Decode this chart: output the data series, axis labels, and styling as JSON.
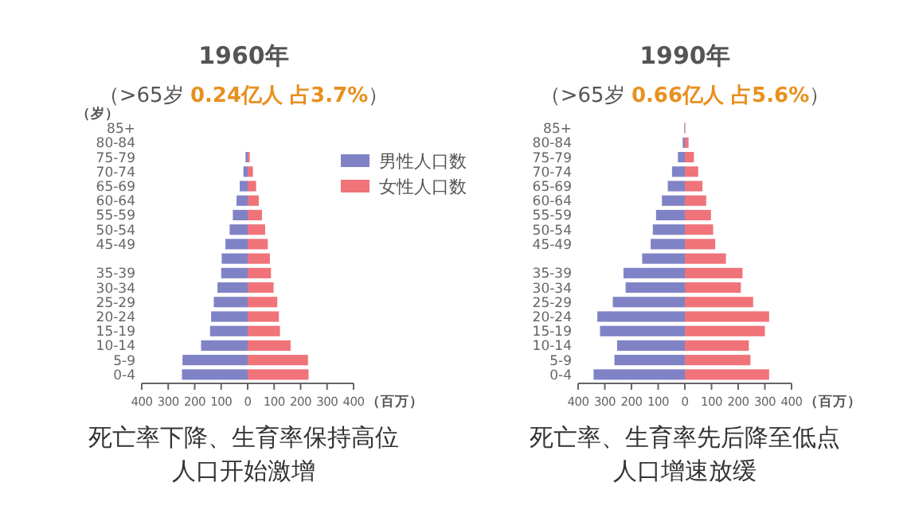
{
  "chart_data": [
    {
      "type": "bar",
      "orientation": "horizontal",
      "stacked": true,
      "title": "1960年",
      "subtitle": "（>65岁 **0.24亿人 占3.7%**）",
      "ylabel": "（岁）",
      "xlabel": "（百万）",
      "categories": [
        "85+",
        "80-84",
        "75-79",
        "70-74",
        "65-69",
        "60-64",
        "55-59",
        "50-54",
        "45-49",
        null,
        "35-39",
        "30-34",
        "25-29",
        "20-24",
        "15-19",
        "10-14",
        "5-9",
        "0-4"
      ],
      "xlim": [
        -400,
        400
      ],
      "xticks": [
        {
          "value": -400,
          "label": "400"
        },
        {
          "value": -300,
          "label": "300"
        },
        {
          "value": -200,
          "label": "200"
        },
        {
          "value": -100,
          "label": "100"
        },
        0,
        100,
        200,
        300,
        400
      ],
      "legend": "top right",
      "series": [
        {
          "name": "男性人口数",
          "color": "#7f83c6",
          "values": [
            0,
            0,
            -8,
            -16,
            -30,
            -42,
            -56,
            -68,
            -84,
            -98,
            -100,
            -114,
            -128,
            -138,
            -142,
            -176,
            -246,
            -248
          ]
        },
        {
          "name": "女性人口数",
          "color": "#f0737a",
          "values": [
            0,
            0,
            8,
            20,
            32,
            42,
            54,
            66,
            76,
            84,
            88,
            98,
            112,
            118,
            122,
            162,
            228,
            230
          ]
        }
      ],
      "annotations": [
        "死亡率下降、生育率保持高位",
        "人口开始激增"
      ]
    },
    {
      "type": "bar",
      "orientation": "horizontal",
      "stacked": true,
      "title": "1990年",
      "subtitle": "（>65岁 **0.66亿人 占5.6%**）",
      "xlabel": "（百万）",
      "categories": [
        "85+",
        "80-84",
        "75-79",
        "70-74",
        "65-69",
        "60-64",
        "55-59",
        "50-54",
        "45-49",
        null,
        "35-39",
        "30-34",
        "25-29",
        "20-24",
        "15-19",
        "10-14",
        "5-9",
        "0-4"
      ],
      "xlim": [
        -400,
        400
      ],
      "xticks": [
        {
          "value": -400,
          "label": "400"
        },
        {
          "value": -300,
          "label": "300"
        },
        {
          "value": -200,
          "label": "200"
        },
        {
          "value": -100,
          "label": "100"
        },
        0,
        100,
        200,
        300,
        400
      ],
      "series": [
        {
          "color": "#7f83c6",
          "values": [
            -2,
            -8,
            -26,
            -48,
            -64,
            -86,
            -108,
            -120,
            -128,
            -160,
            -230,
            -222,
            -270,
            -328,
            -318,
            -254,
            -264,
            -342
          ]
        },
        {
          "color": "#f0737a",
          "values": [
            2,
            14,
            34,
            50,
            66,
            80,
            98,
            106,
            114,
            154,
            216,
            210,
            256,
            316,
            300,
            240,
            246,
            316
          ]
        }
      ],
      "annotations": [
        "死亡率、生育率先后降至低点",
        "人口增速放缓"
      ]
    }
  ]
}
